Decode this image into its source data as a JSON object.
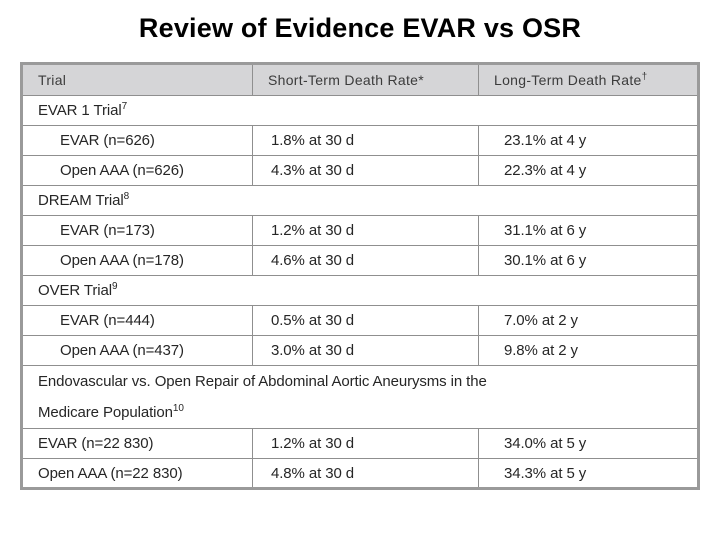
{
  "slide": {
    "title": "Review of Evidence EVAR vs OSR"
  },
  "table": {
    "columns": [
      {
        "label": "Trial",
        "sup": ""
      },
      {
        "label": "Short-Term Death Rate*",
        "sup": ""
      },
      {
        "label": "Long-Term Death Rate",
        "sup": "†"
      }
    ],
    "rows": [
      {
        "type": "group",
        "lines": [
          "EVAR 1 Trial"
        ],
        "sup": "7",
        "tall": false
      },
      {
        "type": "data",
        "indent": true,
        "trial": "EVAR (n=626)",
        "short_term": "1.8% at 30 d",
        "long_term": "23.1% at 4 y"
      },
      {
        "type": "data",
        "indent": true,
        "trial": "Open AAA (n=626)",
        "short_term": "4.3% at 30 d",
        "long_term": "22.3% at 4 y"
      },
      {
        "type": "group",
        "lines": [
          "DREAM Trial"
        ],
        "sup": "8",
        "tall": false
      },
      {
        "type": "data",
        "indent": true,
        "trial": "EVAR (n=173)",
        "short_term": "1.2% at 30 d",
        "long_term": "31.1% at 6 y"
      },
      {
        "type": "data",
        "indent": true,
        "trial": "Open AAA (n=178)",
        "short_term": "4.6% at 30 d",
        "long_term": "30.1% at 6 y"
      },
      {
        "type": "group",
        "lines": [
          "OVER Trial"
        ],
        "sup": "9",
        "tall": false
      },
      {
        "type": "data",
        "indent": true,
        "trial": "EVAR (n=444)",
        "short_term": "0.5% at 30 d",
        "long_term": "7.0% at 2 y"
      },
      {
        "type": "data",
        "indent": true,
        "trial": "Open AAA (n=437)",
        "short_term": "3.0% at 30 d",
        "long_term": "9.8% at 2 y"
      },
      {
        "type": "group",
        "lines": [
          "Endovascular vs. Open Repair of Abdominal Aortic Aneurysms in the",
          "Medicare Population"
        ],
        "sup": "10",
        "tall": true
      },
      {
        "type": "data",
        "indent": false,
        "trial": "EVAR (n=22 830)",
        "short_term": "1.2% at 30 d",
        "long_term": "34.0% at 5 y"
      },
      {
        "type": "data",
        "indent": false,
        "trial": "Open AAA (n=22 830)",
        "short_term": "4.8% at 30 d",
        "long_term": "34.3% at 5 y"
      }
    ]
  },
  "colors": {
    "header_bg": "#d5d5d7",
    "border": "#8f8f8f",
    "outer_border": "#9a9a9a",
    "text": "#262626",
    "header_text": "#3b3b3b",
    "title_text": "#000000",
    "slide_bg": "#ffffff"
  }
}
